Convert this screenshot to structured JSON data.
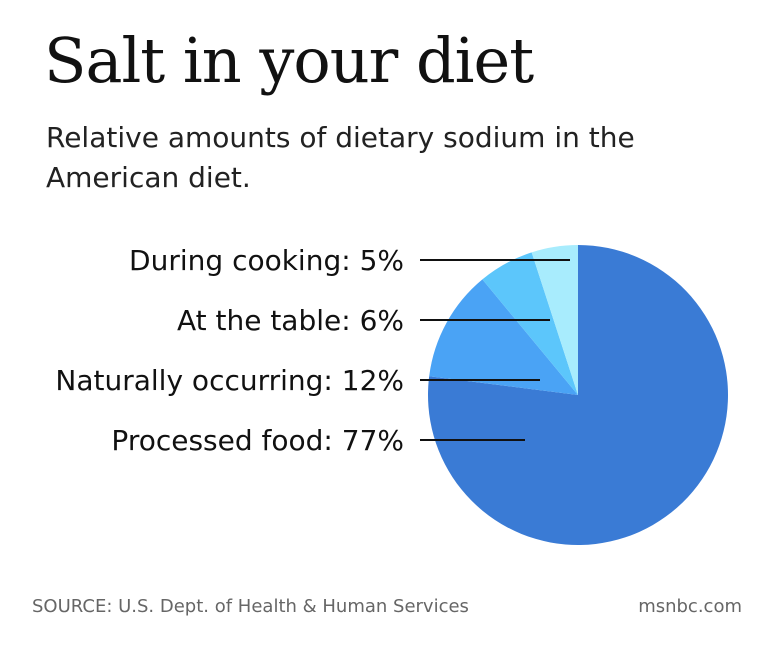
{
  "header": {
    "title": "Salt in your diet",
    "subtitle": "Relative amounts of dietary sodium in the American diet."
  },
  "footer": {
    "source": "SOURCE: U.S. Dept. of Health & Human Services",
    "credit": "msnbc.com"
  },
  "chart_data": {
    "type": "pie",
    "title": "Salt in your diet",
    "subtitle": "Relative amounts of dietary sodium in the American diet.",
    "slices": [
      {
        "label": "Processed food: 77%",
        "value": 77,
        "color": "#3a7bd5"
      },
      {
        "label": "Naturally occurring: 12%",
        "value": 12,
        "color": "#4aa3f5"
      },
      {
        "label": "At the table: 6%",
        "value": 6,
        "color": "#5cc6fb"
      },
      {
        "label": "During cooking: 5%",
        "value": 5,
        "color": "#a8ecfd"
      }
    ],
    "legend_position": "left"
  }
}
